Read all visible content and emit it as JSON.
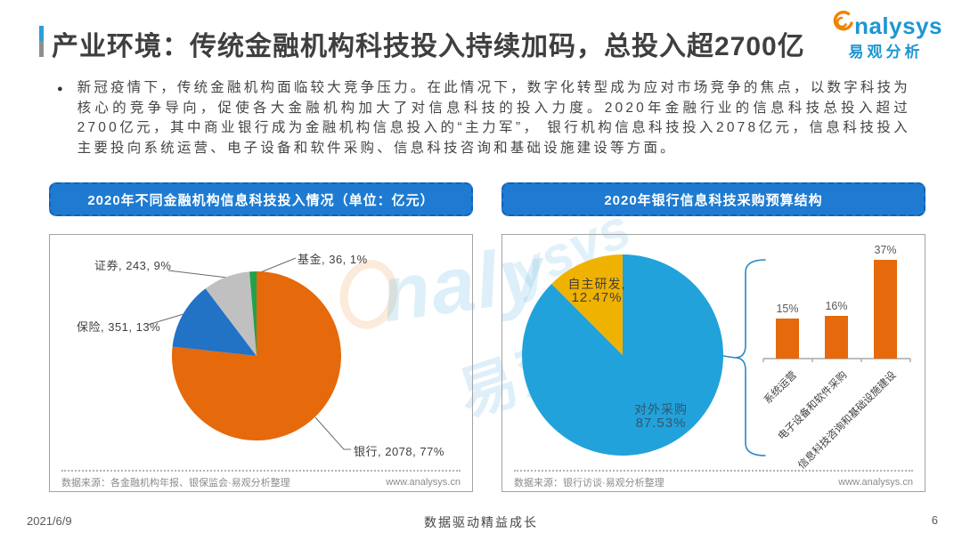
{
  "header": {
    "title": "产业环境：传统金融机构科技投入持续加码，总投入超2700亿",
    "logo_text": "nalysys",
    "logo_cn": "易观分析"
  },
  "intro": {
    "bullet": "●",
    "text": "新冠疫情下，传统金融机构面临较大竞争压力。在此情况下，数字化转型成为应对市场竞争的焦点，以数字科技为核心的竞争导向，促使各大金融机构加大了对信息科技的投入力度。2020年金融行业的信息科技总投入超过2700亿元，其中商业银行成为金融机构信息投入的“主力军”， 银行机构信息科技投入2078亿元，信息科技投入主要投向系统运营、电子设备和软件采购、信息科技咨询和基础设施建设等方面。"
  },
  "left_panel": {
    "header": "2020年不同金融机构信息科技投入情况（单位：亿元）",
    "source": "数据来源：各金融机构年报、银保监会·易观分析整理",
    "website": "www.analysys.cn"
  },
  "right_panel": {
    "header": "2020年银行信息科技采购预算结构",
    "source": "数据来源：银行访谈·易观分析整理",
    "website": "www.analysys.cn"
  },
  "footer": {
    "date": "2021/6/9",
    "slogan": "数据驱动精益成长",
    "page": "6"
  },
  "watermark": {
    "frag1": "naly",
    "frag2": "ysys",
    "frag3": "易观"
  },
  "chart_data": [
    {
      "type": "pie",
      "title": "2020年不同金融机构信息科技投入情况（单位：亿元）",
      "unit": "亿元",
      "labels": [
        "银行",
        "保险",
        "证券",
        "基金"
      ],
      "values": [
        2078,
        351,
        243,
        36
      ],
      "percents": [
        77,
        13,
        9,
        1
      ],
      "colors": [
        "#E6690B",
        "#2272C6",
        "#C0C0C0",
        "#21A14B"
      ],
      "start_angle": "top",
      "direction": "clockwise",
      "display_labels": {
        "fund": "基金, 36, 1%",
        "securities": "证券, 243, 9%",
        "insurance": "保险, 351, 13%",
        "bank": "银行, 2078, 77%"
      }
    },
    {
      "type": "pie",
      "title": "2020年银行信息科技采购预算结构",
      "labels": [
        "对外采购",
        "自主研发"
      ],
      "values": [
        87.53,
        12.47
      ],
      "colors": [
        "#22A2DB",
        "#F0B200"
      ],
      "start_angle": "top",
      "direction": "clockwise",
      "display": {
        "self_line1": "自主研发,",
        "self_line2": "12.47%",
        "external_line1": "对外采购",
        "external_line2": "87.53%"
      }
    },
    {
      "type": "bar",
      "categories": [
        "系统运营",
        "电子设备和软件采购",
        "信息科技咨询和基础设施建设"
      ],
      "values": [
        15,
        16,
        37
      ],
      "display_values": [
        "15%",
        "16%",
        "37%"
      ],
      "color": "#E6690B",
      "ylim": [
        0,
        40
      ],
      "grid": false
    }
  ]
}
